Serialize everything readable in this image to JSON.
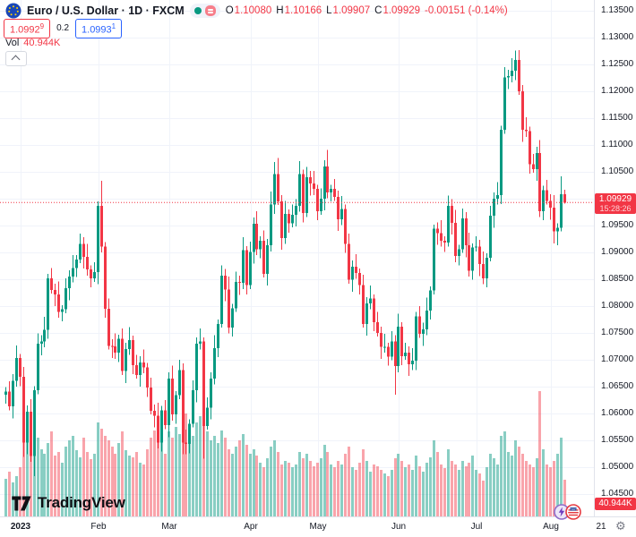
{
  "header": {
    "symbol_title": "Euro / U.S. Dollar · 1D · FXCM",
    "ohlc": {
      "o_label": "O",
      "o": "1.10080",
      "h_label": "H",
      "h": "1.10166",
      "l_label": "L",
      "l": "1.09907",
      "c_label": "C",
      "c": "1.09929",
      "change": "-0.00151 (-0.14%)"
    },
    "bid": "1.0992",
    "bid_sup": "9",
    "spread": "0.2",
    "ask": "1.0993",
    "ask_sup": "1",
    "vol_label": "Vol",
    "vol_value": "40.944K"
  },
  "price_axis_labels": [
    "1.13500",
    "1.13000",
    "1.12500",
    "1.12000",
    "1.11500",
    "1.11000",
    "1.10500",
    "1.10000",
    "1.09500",
    "1.09000",
    "1.08500",
    "1.08000",
    "1.07500",
    "1.07000",
    "1.06500",
    "1.06000",
    "1.05500",
    "1.05000",
    "1.04500"
  ],
  "time_axis": {
    "labels": [
      {
        "text": "2023",
        "index": 4,
        "bold": true,
        "grid": true
      },
      {
        "text": "Feb",
        "index": 26,
        "grid": true
      },
      {
        "text": "Mar",
        "index": 46,
        "grid": true
      },
      {
        "text": "Apr",
        "index": 69,
        "grid": true
      },
      {
        "text": "May",
        "index": 88,
        "grid": true
      },
      {
        "text": "Jun",
        "index": 111,
        "grid": true
      },
      {
        "text": "Jul",
        "index": 133,
        "grid": true
      },
      {
        "text": "Aug",
        "index": 154,
        "grid": true
      },
      {
        "text": "21",
        "index": 168,
        "grid": false
      }
    ]
  },
  "price_flag": {
    "price": "1.09929",
    "countdown": "15:28:26"
  },
  "volume_flag": "40.944K",
  "logo_text": "TradingView",
  "gear_icon": "⚙",
  "chart_data": {
    "type": "candlestick+volume",
    "symbol": "EURUSD",
    "description": "Euro / U.S. Dollar",
    "timeframe": "1D",
    "exchange": "FXCM",
    "first_date": "2022-12-27",
    "last_date": "2023-08-07",
    "y_axis": {
      "top": 1.135,
      "bottom": 1.045,
      "step": 0.005
    },
    "current_price": 1.09929,
    "last_candle": {
      "open": 1.1008,
      "high": 1.10166,
      "low": 1.09907,
      "close": 1.09929,
      "change": -0.00151,
      "change_pct": -0.14
    },
    "last_volume_k": 40.944,
    "open_rule": "previous_close",
    "first_open": 1.0635,
    "closes": [
      1.0641,
      1.0613,
      1.0661,
      1.0703,
      1.0668,
      1.0546,
      1.0603,
      1.0521,
      1.0643,
      1.073,
      1.0734,
      1.0756,
      1.0852,
      1.083,
      1.0822,
      1.0789,
      1.0794,
      1.0833,
      1.0855,
      1.0871,
      1.0887,
      1.0916,
      1.0892,
      1.0868,
      1.0852,
      1.0863,
      1.0987,
      1.0911,
      1.0795,
      1.0726,
      1.0725,
      1.0713,
      1.0739,
      1.0679,
      1.072,
      1.0737,
      1.069,
      1.0672,
      1.0695,
      1.0686,
      1.0648,
      1.0605,
      1.0596,
      1.0546,
      1.0606,
      1.0578,
      1.0665,
      1.0598,
      1.0634,
      1.0681,
      1.0546,
      1.0543,
      1.0581,
      1.0643,
      1.073,
      1.0734,
      1.0577,
      1.0611,
      1.0665,
      1.0722,
      1.0767,
      1.0857,
      1.0831,
      1.076,
      1.0796,
      1.0845,
      1.0843,
      1.0904,
      1.0839,
      1.0901,
      1.0953,
      1.0906,
      1.0922,
      1.086,
      1.0913,
      1.0989,
      1.1046,
      1.0995,
      1.0927,
      1.0972,
      1.0954,
      1.097,
      1.0987,
      1.1046,
      1.0973,
      1.104,
      1.1028,
      1.1018,
      1.0977,
      1.1,
      1.106,
      1.1012,
      1.1018,
      1.1003,
      1.0962,
      1.0981,
      1.0916,
      1.0849,
      1.0873,
      1.0862,
      1.0839,
      1.0767,
      1.0805,
      1.0814,
      1.077,
      1.075,
      1.0724,
      1.0724,
      1.0706,
      1.0734,
      1.0688,
      1.0762,
      1.0707,
      1.0713,
      1.0692,
      1.0698,
      1.0781,
      1.0748,
      1.0757,
      1.0792,
      1.0829,
      1.0944,
      1.0936,
      1.0922,
      1.0918,
      1.0987,
      1.0955,
      1.0893,
      1.0906,
      1.0963,
      1.0913,
      1.0866,
      1.0909,
      1.0911,
      1.0878,
      1.0852,
      1.089,
      1.0968,
      1.1,
      1.1007,
      1.1128,
      1.1226,
      1.1228,
      1.1238,
      1.1258,
      1.12,
      1.1128,
      1.1126,
      1.1064,
      1.1055,
      1.1085,
      1.0977,
      1.1016,
      1.0996,
      1.0983,
      1.0939,
      1.0946,
      1.1008,
      1.09929
    ],
    "volumes_k": [
      42,
      50,
      38,
      45,
      55,
      85,
      92,
      110,
      96,
      88,
      75,
      70,
      82,
      95,
      68,
      72,
      60,
      78,
      85,
      90,
      74,
      66,
      88,
      72,
      64,
      70,
      105,
      98,
      90,
      85,
      78,
      70,
      82,
      95,
      74,
      68,
      66,
      72,
      60,
      58,
      75,
      88,
      96,
      102,
      85,
      70,
      95,
      88,
      100,
      92,
      110,
      115,
      98,
      90,
      105,
      112,
      108,
      95,
      85,
      90,
      82,
      96,
      88,
      75,
      70,
      78,
      85,
      92,
      80,
      70,
      75,
      68,
      60,
      55,
      65,
      78,
      85,
      72,
      58,
      62,
      60,
      55,
      58,
      72,
      65,
      70,
      62,
      56,
      60,
      65,
      80,
      72,
      58,
      55,
      62,
      58,
      70,
      78,
      55,
      52,
      60,
      75,
      62,
      50,
      58,
      56,
      52,
      48,
      45,
      52,
      65,
      70,
      62,
      55,
      58,
      52,
      68,
      56,
      50,
      60,
      66,
      85,
      72,
      58,
      54,
      75,
      62,
      58,
      52,
      62,
      56,
      60,
      68,
      52,
      48,
      40,
      55,
      70,
      65,
      58,
      90,
      95,
      72,
      68,
      85,
      78,
      70,
      62,
      58,
      55,
      65,
      140,
      75,
      58,
      55,
      62,
      70,
      88,
      40.944
    ],
    "wick_high_pattern": [
      0.0008,
      0.0019,
      0.0012,
      0.0024
    ],
    "wick_low_pattern": [
      0.0017,
      0.0007,
      0.0022,
      0.0011
    ],
    "wick_overrides": {
      "5": {
        "l": 1.0519
      },
      "8": {
        "l": 1.0483
      },
      "26": {
        "h": 1.0995
      },
      "27": {
        "h": 1.1033
      },
      "51": {
        "l": 1.0524
      },
      "56": {
        "l": 1.0516
      },
      "76": {
        "h": 1.1068
      },
      "77": {
        "h": 1.1076
      },
      "91": {
        "h": 1.1091
      },
      "110": {
        "l": 1.0635
      },
      "121": {
        "h": 1.0952
      },
      "144": {
        "h": 1.1276
      },
      "151": {
        "l": 1.0966
      },
      "155": {
        "l": 1.0917
      },
      "156": {
        "l": 1.0913
      },
      "157": {
        "h": 1.1042
      },
      "158": {
        "h": 1.10166,
        "l": 1.09907
      }
    },
    "colors": {
      "up": "#089981",
      "down": "#f23645",
      "volume_up": "rgba(8,153,129,0.48)",
      "volume_down": "rgba(242,54,69,0.45)",
      "grid": "#f0f3fa",
      "price_line": "#f23645",
      "accent_blue": "#2962ff"
    },
    "legend_position": "top-left",
    "grid": true
  }
}
